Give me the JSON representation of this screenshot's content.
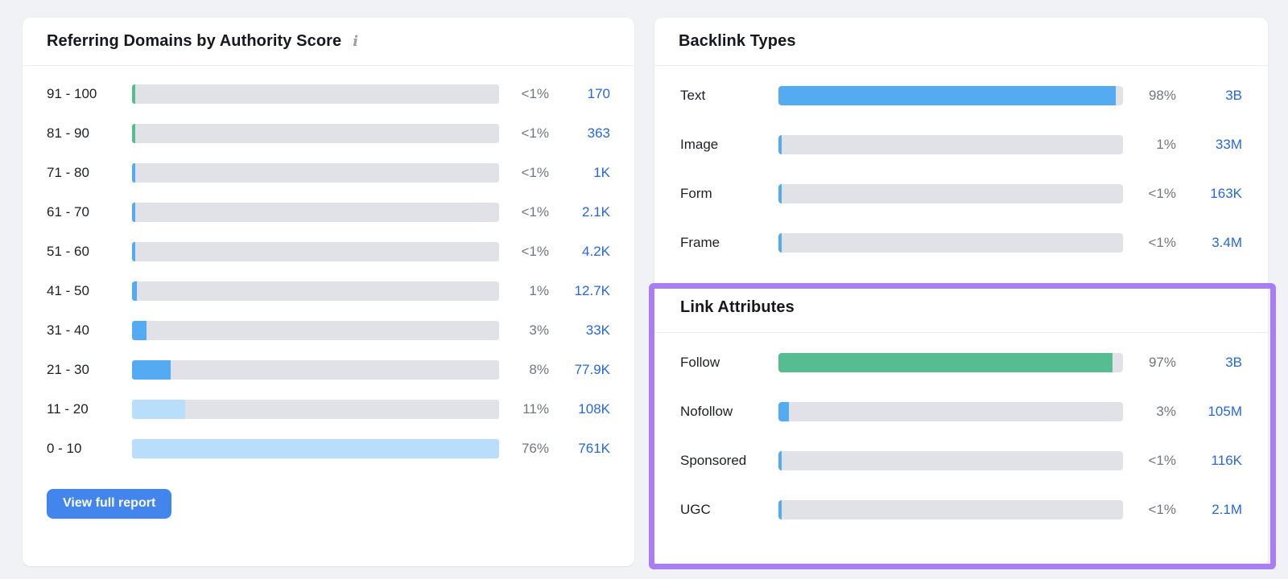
{
  "colors": {
    "page_bg": "#F1F2F6",
    "card_bg": "#FFFFFF",
    "divider": "#EBEDF1",
    "track": "#E1E2E8",
    "fill_blue": "#54ABF2",
    "fill_lightblue": "#B9DEFB",
    "fill_green": "#56BD90",
    "value_link": "#2667E0",
    "percent_text": "#72757C",
    "label_text": "#1D1F24",
    "title_text": "#16181D",
    "button_bg": "#4285EC",
    "highlight_border": "#A97DF6"
  },
  "referring_domains": {
    "title": "Referring Domains by Authority Score",
    "info_icon": "i",
    "button_label": "View full report",
    "rows": [
      {
        "label": "91 - 100",
        "percent": "<1%",
        "value": "170",
        "fill_pct": 0.9,
        "color": "green"
      },
      {
        "label": "81 - 90",
        "percent": "<1%",
        "value": "363",
        "fill_pct": 0.9,
        "color": "green"
      },
      {
        "label": "71 - 80",
        "percent": "<1%",
        "value": "1K",
        "fill_pct": 0.9,
        "color": "blue"
      },
      {
        "label": "61 - 70",
        "percent": "<1%",
        "value": "2.1K",
        "fill_pct": 0.9,
        "color": "blue"
      },
      {
        "label": "51 - 60",
        "percent": "<1%",
        "value": "4.2K",
        "fill_pct": 0.9,
        "color": "blue"
      },
      {
        "label": "41 - 50",
        "percent": "1%",
        "value": "12.7K",
        "fill_pct": 1.3,
        "color": "blue"
      },
      {
        "label": "31 - 40",
        "percent": "3%",
        "value": "33K",
        "fill_pct": 4.0,
        "color": "blue"
      },
      {
        "label": "21 - 30",
        "percent": "8%",
        "value": "77.9K",
        "fill_pct": 10.5,
        "color": "blue"
      },
      {
        "label": "11 - 20",
        "percent": "11%",
        "value": "108K",
        "fill_pct": 14.5,
        "color": "lightblue"
      },
      {
        "label": "0 - 10",
        "percent": "76%",
        "value": "761K",
        "fill_pct": 100,
        "color": "lightblue"
      }
    ]
  },
  "backlink_types": {
    "title": "Backlink Types",
    "rows": [
      {
        "label": "Text",
        "percent": "98%",
        "value": "3B",
        "fill_pct": 98,
        "color": "blue"
      },
      {
        "label": "Image",
        "percent": "1%",
        "value": "33M",
        "fill_pct": 1,
        "color": "blue"
      },
      {
        "label": "Form",
        "percent": "<1%",
        "value": "163K",
        "fill_pct": 0.8,
        "color": "blue"
      },
      {
        "label": "Frame",
        "percent": "<1%",
        "value": "3.4M",
        "fill_pct": 0.8,
        "color": "blue"
      }
    ]
  },
  "link_attributes": {
    "title": "Link Attributes",
    "rows": [
      {
        "label": "Follow",
        "percent": "97%",
        "value": "3B",
        "fill_pct": 97,
        "color": "green"
      },
      {
        "label": "Nofollow",
        "percent": "3%",
        "value": "105M",
        "fill_pct": 3,
        "color": "blue"
      },
      {
        "label": "Sponsored",
        "percent": "<1%",
        "value": "116K",
        "fill_pct": 0.8,
        "color": "blue"
      },
      {
        "label": "UGC",
        "percent": "<1%",
        "value": "2.1M",
        "fill_pct": 0.8,
        "color": "blue"
      }
    ]
  },
  "chart_data": [
    {
      "type": "bar",
      "orientation": "horizontal",
      "title": "Referring Domains by Authority Score",
      "categories": [
        "91 - 100",
        "81 - 90",
        "71 - 80",
        "61 - 70",
        "51 - 60",
        "41 - 50",
        "31 - 40",
        "21 - 30",
        "11 - 20",
        "0 - 10"
      ],
      "percent_labels": [
        "<1%",
        "<1%",
        "<1%",
        "<1%",
        "<1%",
        "1%",
        "3%",
        "8%",
        "11%",
        "76%"
      ],
      "values": [
        170,
        363,
        1000,
        2100,
        4200,
        12700,
        33000,
        77900,
        108000,
        761000
      ],
      "value_labels": [
        "170",
        "363",
        "1K",
        "2.1K",
        "4.2K",
        "12.7K",
        "33K",
        "77.9K",
        "108K",
        "761K"
      ],
      "note": "bar widths normalized to max category (76%)"
    },
    {
      "type": "bar",
      "orientation": "horizontal",
      "title": "Backlink Types",
      "categories": [
        "Text",
        "Image",
        "Form",
        "Frame"
      ],
      "percent_labels": [
        "98%",
        "1%",
        "<1%",
        "<1%"
      ],
      "value_labels": [
        "3B",
        "33M",
        "163K",
        "3.4M"
      ],
      "xlim": [
        0,
        100
      ]
    },
    {
      "type": "bar",
      "orientation": "horizontal",
      "title": "Link Attributes",
      "categories": [
        "Follow",
        "Nofollow",
        "Sponsored",
        "UGC"
      ],
      "percent_labels": [
        "97%",
        "3%",
        "<1%",
        "<1%"
      ],
      "value_labels": [
        "3B",
        "105M",
        "116K",
        "2.1M"
      ],
      "xlim": [
        0,
        100
      ]
    }
  ]
}
